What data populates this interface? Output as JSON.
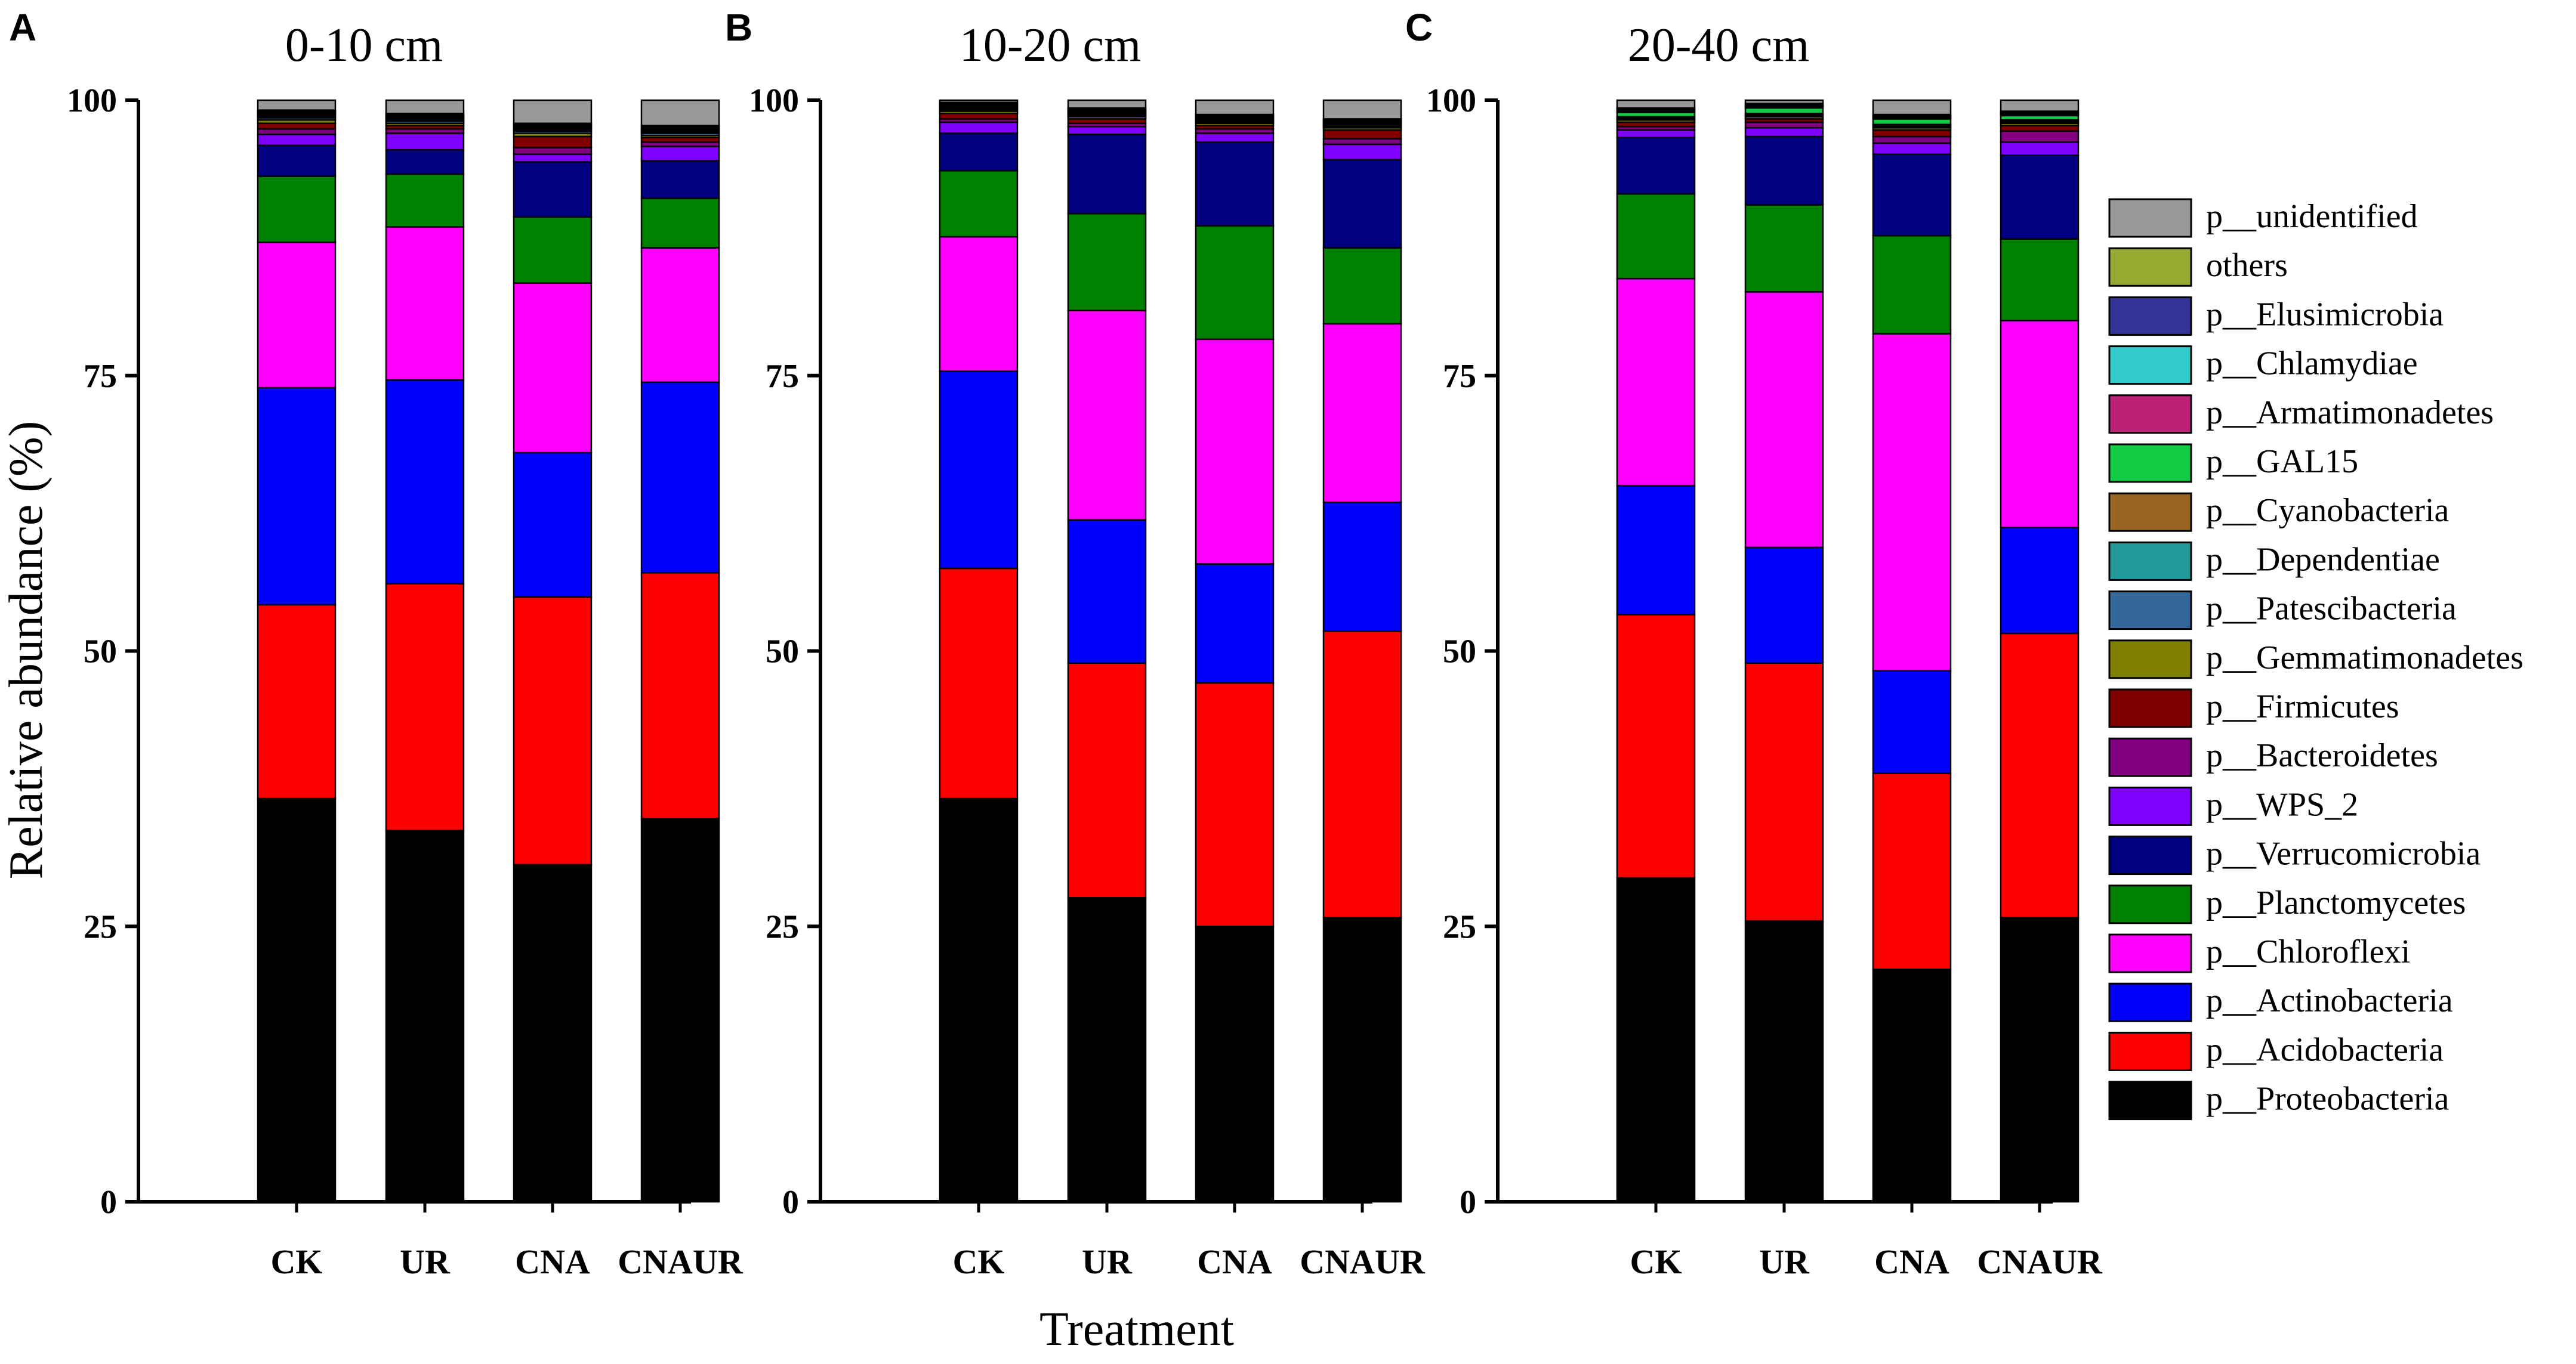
{
  "ylabel": "Relative abundance (%)",
  "xlabel": "Treatment",
  "chart_data": [
    {
      "type": "bar",
      "stacked": true,
      "letter": "A",
      "title": "0-10 cm",
      "categories": [
        "CK",
        "UR",
        "CNA",
        "CNAUR"
      ],
      "ylim": [
        0,
        100
      ],
      "yticks": [
        "0",
        "25",
        "50",
        "75",
        "100"
      ],
      "series": [
        {
          "name": "p__Proteobacteria",
          "values": [
            36.6,
            33.7,
            30.6,
            34.8
          ]
        },
        {
          "name": "p__Acidobacteria",
          "values": [
            17.6,
            22.4,
            24.3,
            22.3
          ]
        },
        {
          "name": "p__Actinobacteria",
          "values": [
            19.7,
            18.5,
            13.1,
            17.3
          ]
        },
        {
          "name": "p__Chloroflexi",
          "values": [
            13.2,
            13.9,
            15.4,
            12.2
          ]
        },
        {
          "name": "p__Planctomycetes",
          "values": [
            6.0,
            4.8,
            6.0,
            4.5
          ]
        },
        {
          "name": "p__Verrucomicrobia",
          "values": [
            2.8,
            2.2,
            5.0,
            3.4
          ]
        },
        {
          "name": "p__WPS_2",
          "values": [
            1.0,
            1.5,
            0.7,
            1.3
          ]
        },
        {
          "name": "p__Bacteroidetes",
          "values": [
            0.5,
            0.4,
            0.6,
            0.4
          ]
        },
        {
          "name": "p__Firmicutes",
          "values": [
            0.5,
            0.3,
            1.0,
            0.4
          ]
        },
        {
          "name": "p__Gemmatimonadetes",
          "values": [
            0.3,
            0.2,
            0.3,
            0.2
          ]
        },
        {
          "name": "p__Patescibacteria",
          "values": [
            0.2,
            0.2,
            0.2,
            0.2
          ]
        },
        {
          "name": "p__Dependentiae",
          "values": [
            0.1,
            0.1,
            0.1,
            0.1
          ]
        },
        {
          "name": "p__Cyanobacteria",
          "values": [
            0.1,
            0.1,
            0.1,
            0.1
          ]
        },
        {
          "name": "p__GAL15",
          "values": [
            0.1,
            0.1,
            0.1,
            0.1
          ]
        },
        {
          "name": "p__Armatimonadetes",
          "values": [
            0.1,
            0.1,
            0.1,
            0.1
          ]
        },
        {
          "name": "p__Chlamydiae",
          "values": [
            0.1,
            0.1,
            0.1,
            0.1
          ]
        },
        {
          "name": "p__Elusimicrobia",
          "values": [
            0.1,
            0.1,
            0.1,
            0.1
          ]
        },
        {
          "name": "others",
          "values": [
            0.1,
            0.1,
            0.1,
            0.1
          ]
        },
        {
          "name": "p__unidentified",
          "values": [
            1.0,
            1.3,
            2.2,
            2.3
          ]
        }
      ]
    },
    {
      "type": "bar",
      "stacked": true,
      "letter": "B",
      "title": "10-20 cm",
      "categories": [
        "CK",
        "UR",
        "CNA",
        "CNAUR"
      ],
      "ylim": [
        0,
        100
      ],
      "yticks": [
        "0",
        "25",
        "50",
        "75",
        "100"
      ],
      "series": [
        {
          "name": "p__Proteobacteria",
          "values": [
            36.6,
            27.6,
            25.0,
            25.8
          ]
        },
        {
          "name": "p__Acidobacteria",
          "values": [
            20.9,
            21.3,
            22.1,
            26.0
          ]
        },
        {
          "name": "p__Actinobacteria",
          "values": [
            17.9,
            13.0,
            10.8,
            11.7
          ]
        },
        {
          "name": "p__Chloroflexi",
          "values": [
            12.2,
            19.0,
            20.4,
            16.2
          ]
        },
        {
          "name": "p__Planctomycetes",
          "values": [
            6.0,
            8.8,
            10.3,
            6.9
          ]
        },
        {
          "name": "p__Verrucomicrobia",
          "values": [
            3.4,
            7.2,
            7.6,
            8.0
          ]
        },
        {
          "name": "p__WPS_2",
          "values": [
            1.0,
            0.7,
            0.8,
            1.4
          ]
        },
        {
          "name": "p__Bacteroidetes",
          "values": [
            0.3,
            0.3,
            0.4,
            0.5
          ]
        },
        {
          "name": "p__Firmicutes",
          "values": [
            0.5,
            0.4,
            0.3,
            0.8
          ]
        },
        {
          "name": "p__Gemmatimonadetes",
          "values": [
            0.2,
            0.2,
            0.2,
            0.2
          ]
        },
        {
          "name": "p__Patescibacteria",
          "values": [
            0.1,
            0.1,
            0.1,
            0.1
          ]
        },
        {
          "name": "p__Dependentiae",
          "values": [
            0.1,
            0.1,
            0.1,
            0.1
          ]
        },
        {
          "name": "p__Cyanobacteria",
          "values": [
            0.1,
            0.1,
            0.1,
            0.1
          ]
        },
        {
          "name": "p__GAL15",
          "values": [
            0.1,
            0.1,
            0.1,
            0.1
          ]
        },
        {
          "name": "p__Armatimonadetes",
          "values": [
            0.1,
            0.1,
            0.1,
            0.1
          ]
        },
        {
          "name": "p__Chlamydiae",
          "values": [
            0.1,
            0.1,
            0.1,
            0.1
          ]
        },
        {
          "name": "p__Elusimicrobia",
          "values": [
            0.1,
            0.1,
            0.1,
            0.1
          ]
        },
        {
          "name": "others",
          "values": [
            0.1,
            0.1,
            0.1,
            0.1
          ]
        },
        {
          "name": "p__unidentified",
          "values": [
            0.3,
            0.7,
            1.5,
            1.8
          ]
        }
      ]
    },
    {
      "type": "bar",
      "stacked": true,
      "letter": "C",
      "title": "20-40 cm",
      "categories": [
        "CK",
        "UR",
        "CNA",
        "CNAUR"
      ],
      "ylim": [
        0,
        100
      ],
      "yticks": [
        "0",
        "25",
        "50",
        "75",
        "100"
      ],
      "series": [
        {
          "name": "p__Proteobacteria",
          "values": [
            29.4,
            25.5,
            21.1,
            25.8
          ]
        },
        {
          "name": "p__Acidobacteria",
          "values": [
            23.9,
            23.4,
            17.8,
            25.8
          ]
        },
        {
          "name": "p__Actinobacteria",
          "values": [
            11.7,
            10.5,
            9.3,
            9.6
          ]
        },
        {
          "name": "p__Chloroflexi",
          "values": [
            18.8,
            23.2,
            30.6,
            18.8
          ]
        },
        {
          "name": "p__Planctomycetes",
          "values": [
            7.7,
            7.9,
            8.9,
            7.4
          ]
        },
        {
          "name": "p__Verrucomicrobia",
          "values": [
            5.1,
            6.2,
            7.4,
            7.6
          ]
        },
        {
          "name": "p__WPS_2",
          "values": [
            0.7,
            0.8,
            1.0,
            1.2
          ]
        },
        {
          "name": "p__Bacteroidetes",
          "values": [
            0.3,
            0.5,
            0.6,
            1.0
          ]
        },
        {
          "name": "p__Firmicutes",
          "values": [
            0.4,
            0.3,
            0.6,
            0.5
          ]
        },
        {
          "name": "p__Gemmatimonadetes",
          "values": [
            0.2,
            0.2,
            0.2,
            0.2
          ]
        },
        {
          "name": "p__Patescibacteria",
          "values": [
            0.1,
            0.1,
            0.1,
            0.1
          ]
        },
        {
          "name": "p__Dependentiae",
          "values": [
            0.1,
            0.1,
            0.1,
            0.1
          ]
        },
        {
          "name": "p__Cyanobacteria",
          "values": [
            0.1,
            0.1,
            0.1,
            0.1
          ]
        },
        {
          "name": "p__GAL15",
          "values": [
            0.4,
            0.5,
            0.5,
            0.4
          ]
        },
        {
          "name": "p__Armatimonadetes",
          "values": [
            0.1,
            0.1,
            0.1,
            0.1
          ]
        },
        {
          "name": "p__Chlamydiae",
          "values": [
            0.1,
            0.1,
            0.1,
            0.1
          ]
        },
        {
          "name": "p__Elusimicrobia",
          "values": [
            0.1,
            0.1,
            0.1,
            0.1
          ]
        },
        {
          "name": "others",
          "values": [
            0.1,
            0.1,
            0.1,
            0.1
          ]
        },
        {
          "name": "p__unidentified",
          "values": [
            0.7,
            0.5,
            1.5,
            1.4
          ]
        }
      ]
    }
  ],
  "legend": {
    "position": "right",
    "items": [
      {
        "name": "p__unidentified",
        "label": "p__unidentified",
        "color": "#999999"
      },
      {
        "name": "others",
        "label": "others",
        "color": "#99AA33"
      },
      {
        "name": "p__Elusimicrobia",
        "label": "p__Elusimicrobia",
        "color": "#333399"
      },
      {
        "name": "p__Chlamydiae",
        "label": "p__Chlamydiae",
        "color": "#33CCCC"
      },
      {
        "name": "p__Armatimonadetes",
        "label": "p__Armatimonadetes",
        "color": "#BB2277"
      },
      {
        "name": "p__GAL15",
        "label": "p__GAL15",
        "color": "#11CC44"
      },
      {
        "name": "p__Cyanobacteria",
        "label": "p__Cyanobacteria",
        "color": "#996622"
      },
      {
        "name": "p__Dependentiae",
        "label": "p__Dependentiae",
        "color": "#229999"
      },
      {
        "name": "p__Patescibacteria",
        "label": "p__Patescibacteria",
        "color": "#336699"
      },
      {
        "name": "p__Gemmatimonadetes",
        "label": "p__Gemmatimonadetes",
        "color": "#7F7F00"
      },
      {
        "name": "p__Firmicutes",
        "label": "p__Firmicutes",
        "color": "#800000"
      },
      {
        "name": "p__Bacteroidetes",
        "label": "p__Bacteroidetes",
        "color": "#800080"
      },
      {
        "name": "p__WPS_2",
        "label": "p__WPS_2",
        "color": "#8000FF"
      },
      {
        "name": "p__Verrucomicrobia",
        "label": "p__Verrucomicrobia",
        "color": "#000080"
      },
      {
        "name": "p__Planctomycetes",
        "label": "p__Planctomycetes",
        "color": "#008000"
      },
      {
        "name": "p__Chloroflexi",
        "label": "p__Chloroflexi",
        "color": "#FF00FF"
      },
      {
        "name": "p__Actinobacteria",
        "label": "p__Actinobacteria",
        "color": "#0000FF"
      },
      {
        "name": "p__Acidobacteria",
        "label": "p__Acidobacteria",
        "color": "#FF0000"
      },
      {
        "name": "p__Proteobacteria",
        "label": "p__Proteobacteria",
        "color": "#000000"
      }
    ]
  }
}
